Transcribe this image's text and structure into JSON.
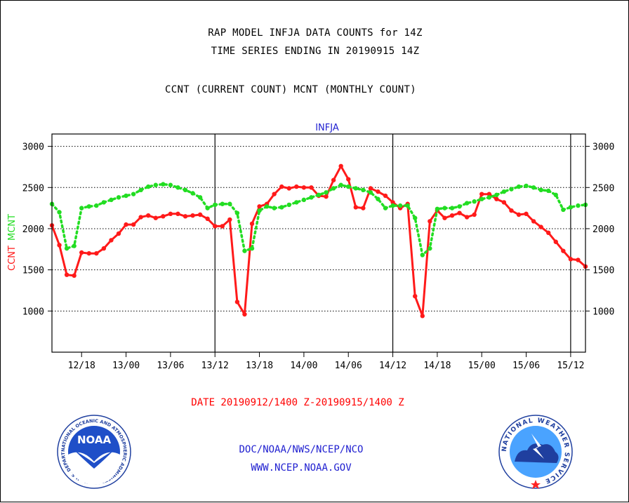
{
  "title_line1": "RAP MODEL INFJA DATA COUNTS for 14Z",
  "title_line2": "TIME SERIES ENDING IN 20190915 14Z",
  "subtitle": "CCNT (CURRENT COUNT) MCNT (MONTHLY COUNT)",
  "footer": {
    "date_range": "DATE 20190912/1400 Z-20190915/1400 Z",
    "org": "DOC/NOAA/NWS/NCEP/NCO",
    "url": "WWW.NCEP.NOAA.GOV",
    "noaa_logo_text": "NOAA",
    "noaa_ring_text": "NATIONAL OCEANIC AND ATMOSPHERIC ADMINISTRATION · U.S. DEPARTMENT OF COMMERCE",
    "nws_ring_text": "NATIONAL WEATHER SERVICE"
  },
  "colors": {
    "ccnt": "#ff1a1a",
    "mcnt": "#22dd22",
    "panel_label": "#1f1fd0",
    "grid": "#000000"
  },
  "chart_data": {
    "type": "line",
    "panel_label": "INFJA",
    "ylabel_ccnt": "CCNT",
    "ylabel_mcnt": "MCNT",
    "x_unit": "hours since 12/14Z",
    "xlim": [
      0,
      72
    ],
    "ylim": [
      500,
      3150
    ],
    "yticks": [
      1000,
      1500,
      2000,
      2500,
      3000
    ],
    "xticks": [
      {
        "x": 4,
        "label": "12/18"
      },
      {
        "x": 10,
        "label": "13/00"
      },
      {
        "x": 16,
        "label": "13/06"
      },
      {
        "x": 22,
        "label": "13/12"
      },
      {
        "x": 28,
        "label": "13/18"
      },
      {
        "x": 34,
        "label": "14/00"
      },
      {
        "x": 40,
        "label": "14/06"
      },
      {
        "x": 46,
        "label": "14/12"
      },
      {
        "x": 52,
        "label": "14/18"
      },
      {
        "x": 58,
        "label": "15/00"
      },
      {
        "x": 64,
        "label": "15/06"
      },
      {
        "x": 70,
        "label": "15/12"
      }
    ],
    "day_boundaries": [
      22,
      46,
      70
    ],
    "grid": true,
    "series": [
      {
        "name": "CCNT",
        "style": "solid",
        "x": [
          0,
          1,
          2,
          3,
          4,
          5,
          6,
          7,
          8,
          9,
          10,
          11,
          12,
          13,
          14,
          15,
          16,
          17,
          18,
          19,
          20,
          21,
          22,
          23,
          24,
          25,
          26,
          27,
          28,
          29,
          30,
          31,
          32,
          33,
          34,
          35,
          36,
          37,
          38,
          39,
          40,
          41,
          42,
          43,
          44,
          45,
          46,
          47,
          48,
          49,
          50,
          51,
          52,
          53,
          54,
          55,
          56,
          57,
          58,
          59,
          60,
          61,
          62,
          63,
          64,
          65,
          66,
          67,
          68,
          69,
          70,
          71,
          72
        ],
        "values": [
          2040,
          1800,
          1440,
          1430,
          1710,
          1700,
          1700,
          1760,
          1860,
          1940,
          2050,
          2050,
          2140,
          2160,
          2130,
          2150,
          2180,
          2180,
          2150,
          2160,
          2170,
          2120,
          2030,
          2030,
          2110,
          1110,
          960,
          2060,
          2270,
          2300,
          2420,
          2510,
          2490,
          2510,
          2500,
          2500,
          2400,
          2390,
          2590,
          2760,
          2600,
          2260,
          2250,
          2490,
          2450,
          2400,
          2320,
          2250,
          2300,
          1180,
          940,
          2090,
          2220,
          2130,
          2160,
          2190,
          2140,
          2170,
          2420,
          2420,
          2360,
          2320,
          2220,
          2170,
          2180,
          2090,
          2020,
          1950,
          1840,
          1730,
          1630,
          1620,
          1540
        ]
      },
      {
        "name": "MCNT",
        "style": "dotted",
        "x": [
          0,
          1,
          2,
          3,
          4,
          5,
          6,
          7,
          8,
          9,
          10,
          11,
          12,
          13,
          14,
          15,
          16,
          17,
          18,
          19,
          20,
          21,
          22,
          23,
          24,
          25,
          26,
          27,
          28,
          29,
          30,
          31,
          32,
          33,
          34,
          35,
          36,
          37,
          38,
          39,
          40,
          41,
          42,
          43,
          44,
          45,
          46,
          47,
          48,
          49,
          50,
          51,
          52,
          53,
          54,
          55,
          56,
          57,
          58,
          59,
          60,
          61,
          62,
          63,
          64,
          65,
          66,
          67,
          68,
          69,
          70,
          71,
          72
        ],
        "values": [
          2300,
          2200,
          1760,
          1790,
          2250,
          2270,
          2280,
          2320,
          2350,
          2380,
          2400,
          2420,
          2470,
          2510,
          2530,
          2540,
          2530,
          2500,
          2470,
          2430,
          2380,
          2250,
          2290,
          2300,
          2300,
          2190,
          1730,
          1760,
          2220,
          2270,
          2250,
          2260,
          2290,
          2320,
          2350,
          2380,
          2410,
          2440,
          2490,
          2530,
          2510,
          2490,
          2470,
          2440,
          2360,
          2250,
          2280,
          2280,
          2280,
          2130,
          1680,
          1760,
          2240,
          2250,
          2250,
          2270,
          2310,
          2330,
          2360,
          2380,
          2410,
          2450,
          2480,
          2510,
          2520,
          2500,
          2470,
          2460,
          2410,
          2230,
          2260,
          2280,
          2290
        ]
      }
    ]
  }
}
